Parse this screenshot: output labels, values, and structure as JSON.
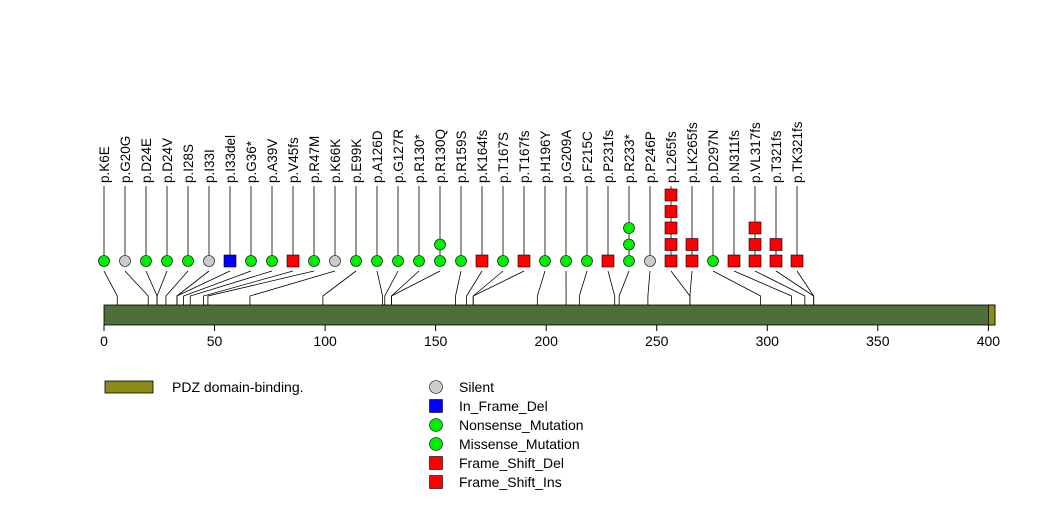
{
  "chart_data": {
    "type": "lollipop",
    "axis": {
      "min": 0,
      "max": 403,
      "ticks": [
        0,
        50,
        100,
        150,
        200,
        250,
        300,
        350,
        400
      ]
    },
    "domains": [
      {
        "name": "PDZ domain-binding.",
        "start": 400,
        "end": 403,
        "color": "#8b8b1c"
      }
    ],
    "backbone_color": "#4e6e3a",
    "mutation_types": {
      "Silent": {
        "shape": "circle",
        "color": "#cccccc"
      },
      "In_Frame_Del": {
        "shape": "square",
        "color": "#0000ff"
      },
      "Nonsense_Mutation": {
        "shape": "circle",
        "color": "#00ee00"
      },
      "Missense_Mutation": {
        "shape": "circle",
        "color": "#00ee00"
      },
      "Frame_Shift_Del": {
        "shape": "square",
        "color": "#ff0000"
      },
      "Frame_Shift_Ins": {
        "shape": "square",
        "color": "#ff0000"
      }
    },
    "legend_left": [
      "PDZ domain-binding."
    ],
    "legend_right": [
      "Silent",
      "In_Frame_Del",
      "Nonsense_Mutation",
      "Missense_Mutation",
      "Frame_Shift_Del",
      "Frame_Shift_Ins"
    ],
    "mutations": [
      {
        "label": "p.K6E",
        "pos": 6,
        "markers": [
          "Missense_Mutation"
        ]
      },
      {
        "label": "p.G20G",
        "pos": 20,
        "markers": [
          "Silent"
        ]
      },
      {
        "label": "p.D24E",
        "pos": 24,
        "markers": [
          "Missense_Mutation"
        ]
      },
      {
        "label": "p.D24V",
        "pos": 24,
        "markers": [
          "Missense_Mutation"
        ]
      },
      {
        "label": "p.I28S",
        "pos": 28,
        "markers": [
          "Missense_Mutation"
        ]
      },
      {
        "label": "p.I33I",
        "pos": 33,
        "markers": [
          "Silent"
        ]
      },
      {
        "label": "p.I33del",
        "pos": 33,
        "markers": [
          "In_Frame_Del"
        ]
      },
      {
        "label": "p.G36*",
        "pos": 36,
        "markers": [
          "Nonsense_Mutation"
        ]
      },
      {
        "label": "p.A39V",
        "pos": 39,
        "markers": [
          "Missense_Mutation"
        ]
      },
      {
        "label": "p.V45fs",
        "pos": 45,
        "markers": [
          "Frame_Shift_Del"
        ]
      },
      {
        "label": "p.R47M",
        "pos": 47,
        "markers": [
          "Missense_Mutation"
        ]
      },
      {
        "label": "p.K66K",
        "pos": 66,
        "markers": [
          "Silent"
        ]
      },
      {
        "label": "p.E99K",
        "pos": 99,
        "markers": [
          "Missense_Mutation"
        ]
      },
      {
        "label": "p.A126D",
        "pos": 126,
        "markers": [
          "Missense_Mutation"
        ]
      },
      {
        "label": "p.G127R",
        "pos": 127,
        "markers": [
          "Missense_Mutation"
        ]
      },
      {
        "label": "p.R130*",
        "pos": 130,
        "markers": [
          "Nonsense_Mutation"
        ]
      },
      {
        "label": "p.R130Q",
        "pos": 130,
        "markers": [
          "Missense_Mutation",
          "Missense_Mutation"
        ]
      },
      {
        "label": "p.R159S",
        "pos": 159,
        "markers": [
          "Missense_Mutation"
        ]
      },
      {
        "label": "p.K164fs",
        "pos": 164,
        "markers": [
          "Frame_Shift_Del"
        ]
      },
      {
        "label": "p.T167S",
        "pos": 167,
        "markers": [
          "Missense_Mutation"
        ]
      },
      {
        "label": "p.T167fs",
        "pos": 167,
        "markers": [
          "Frame_Shift_Del"
        ]
      },
      {
        "label": "p.H196Y",
        "pos": 196,
        "markers": [
          "Missense_Mutation"
        ]
      },
      {
        "label": "p.G209A",
        "pos": 209,
        "markers": [
          "Missense_Mutation"
        ]
      },
      {
        "label": "p.F215C",
        "pos": 215,
        "markers": [
          "Missense_Mutation"
        ]
      },
      {
        "label": "p.P231fs",
        "pos": 231,
        "markers": [
          "Frame_Shift_Del"
        ]
      },
      {
        "label": "p.R233*",
        "pos": 233,
        "markers": [
          "Nonsense_Mutation",
          "Nonsense_Mutation",
          "Nonsense_Mutation"
        ]
      },
      {
        "label": "p.P246P",
        "pos": 246,
        "markers": [
          "Silent"
        ]
      },
      {
        "label": "p.L265fs",
        "pos": 265,
        "markers": [
          "Frame_Shift_Del",
          "Frame_Shift_Del",
          "Frame_Shift_Del",
          "Frame_Shift_Del",
          "Frame_Shift_Del"
        ]
      },
      {
        "label": "p.LK265fs",
        "pos": 265,
        "markers": [
          "Frame_Shift_Ins",
          "Frame_Shift_Ins"
        ]
      },
      {
        "label": "p.D297N",
        "pos": 297,
        "markers": [
          "Missense_Mutation"
        ]
      },
      {
        "label": "p.N311fs",
        "pos": 311,
        "markers": [
          "Frame_Shift_Del"
        ]
      },
      {
        "label": "p.VL317fs",
        "pos": 317,
        "markers": [
          "Frame_Shift_Del",
          "Frame_Shift_Del",
          "Frame_Shift_Del"
        ]
      },
      {
        "label": "p.T321fs",
        "pos": 321,
        "markers": [
          "Frame_Shift_Del",
          "Frame_Shift_Del"
        ]
      },
      {
        "label": "p.TK321fs",
        "pos": 321,
        "markers": [
          "Frame_Shift_Ins"
        ]
      }
    ]
  }
}
